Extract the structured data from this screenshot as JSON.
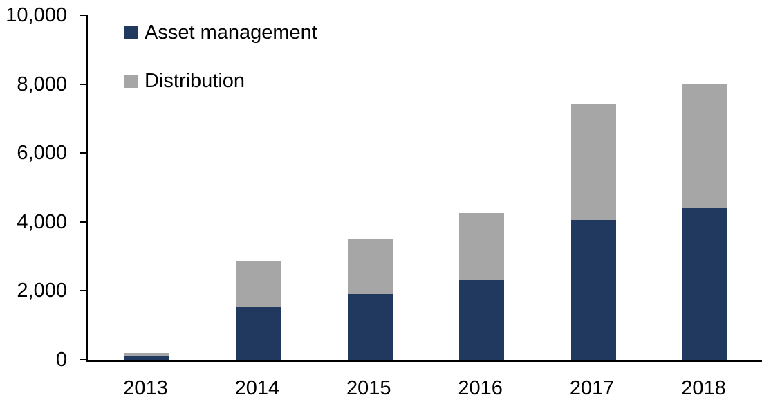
{
  "chart_data": {
    "type": "bar",
    "stacked": true,
    "title": "",
    "xlabel": "",
    "ylabel": "",
    "categories": [
      "2013",
      "2014",
      "2015",
      "2016",
      "2017",
      "2018"
    ],
    "series": [
      {
        "name": "Asset management",
        "color": "#21395F",
        "values": [
          100,
          1550,
          1900,
          2300,
          4050,
          4400
        ]
      },
      {
        "name": "Distribution",
        "color": "#A6A6A6",
        "values": [
          100,
          1320,
          1600,
          1950,
          3350,
          3600
        ]
      }
    ],
    "ylim": [
      0,
      10000
    ],
    "yticks": [
      {
        "value": 0,
        "label": "0"
      },
      {
        "value": 2000,
        "label": "2,000"
      },
      {
        "value": 4000,
        "label": "4,000"
      },
      {
        "value": 6000,
        "label": "6,000"
      },
      {
        "value": 8000,
        "label": "8,000"
      },
      {
        "value": 10000,
        "label": "10,000"
      }
    ],
    "grid": false,
    "legend_position": "top-left",
    "axis_color": "#000000",
    "background": "#FFFFFF"
  }
}
